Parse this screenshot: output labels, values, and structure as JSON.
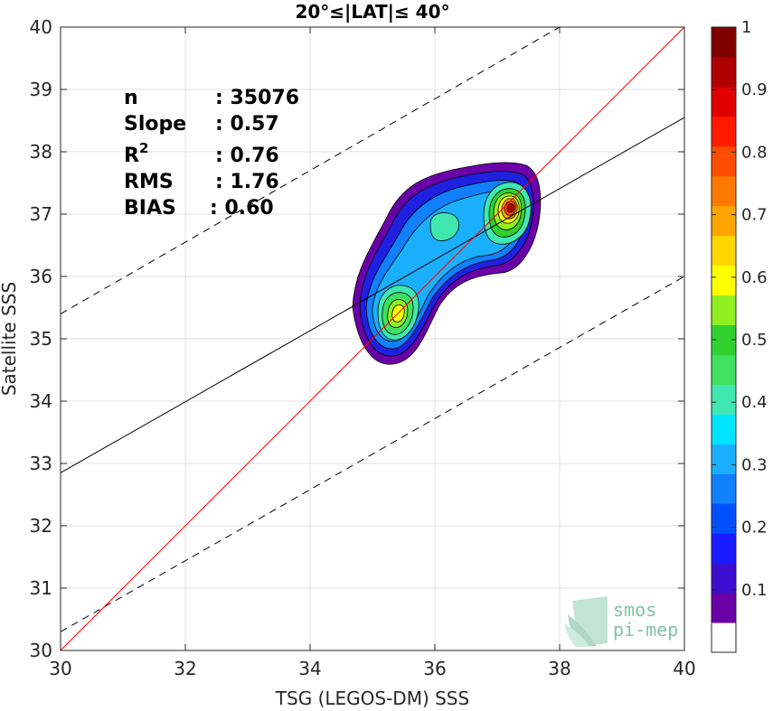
{
  "chart_data": {
    "type": "heatmap",
    "title": "20°≤|LAT|≤ 40°",
    "xlabel": "TSG (LEGOS-DM) SSS",
    "ylabel": "Satellite SSS",
    "xlim": [
      30,
      40
    ],
    "ylim": [
      30,
      40
    ],
    "xticks": [
      "30",
      "32",
      "34",
      "36",
      "38",
      "40"
    ],
    "yticks": [
      "30",
      "31",
      "32",
      "33",
      "34",
      "35",
      "36",
      "37",
      "38",
      "39",
      "40"
    ],
    "grid": true,
    "stats": [
      {
        "label": "n",
        "value": ": 35076"
      },
      {
        "label": "Slope",
        "value": ": 0.57"
      },
      {
        "label": "R2",
        "value": ": 0.76"
      },
      {
        "label": "RMS",
        "value": ": 1.76"
      },
      {
        "label": "BIAS",
        "value": ": 0.60"
      }
    ],
    "lines": {
      "identity": {
        "color": "#ff0000",
        "points": [
          [
            30,
            30
          ],
          [
            40,
            40
          ]
        ]
      },
      "regression": {
        "color": "#000000",
        "points": [
          [
            30,
            32.85
          ],
          [
            40,
            38.55
          ]
        ]
      },
      "bounds": {
        "color": "#000000",
        "style": "dashed",
        "upper": [
          [
            30,
            35.4
          ],
          [
            38,
            40
          ]
        ],
        "lower": [
          [
            30,
            30.3
          ],
          [
            40,
            36.0
          ]
        ]
      }
    },
    "density_peaks": [
      {
        "x": 37.2,
        "y": 37.05,
        "value": 1.0
      },
      {
        "x": 35.4,
        "y": 35.4,
        "value": 0.6
      },
      {
        "x": 36.1,
        "y": 36.8,
        "value": 0.4
      }
    ],
    "colorbar": {
      "range": [
        0,
        1
      ],
      "ticks": [
        "0.1",
        "0.2",
        "0.3",
        "0.4",
        "0.5",
        "0.6",
        "0.7",
        "0.8",
        "0.9",
        "1"
      ],
      "colors": [
        "#ffffff",
        "#6a00a8",
        "#3b0fcf",
        "#1a1aff",
        "#0050ff",
        "#1080ff",
        "#1ab0ff",
        "#00e5ff",
        "#40e8b0",
        "#40e060",
        "#30d030",
        "#90f020",
        "#ffff00",
        "#ffd700",
        "#ffa500",
        "#ff7a00",
        "#ff4d00",
        "#ff1a00",
        "#e00000",
        "#b00000",
        "#800000"
      ]
    }
  },
  "logo": {
    "line1": "smos",
    "line2": "pi-mep"
  }
}
